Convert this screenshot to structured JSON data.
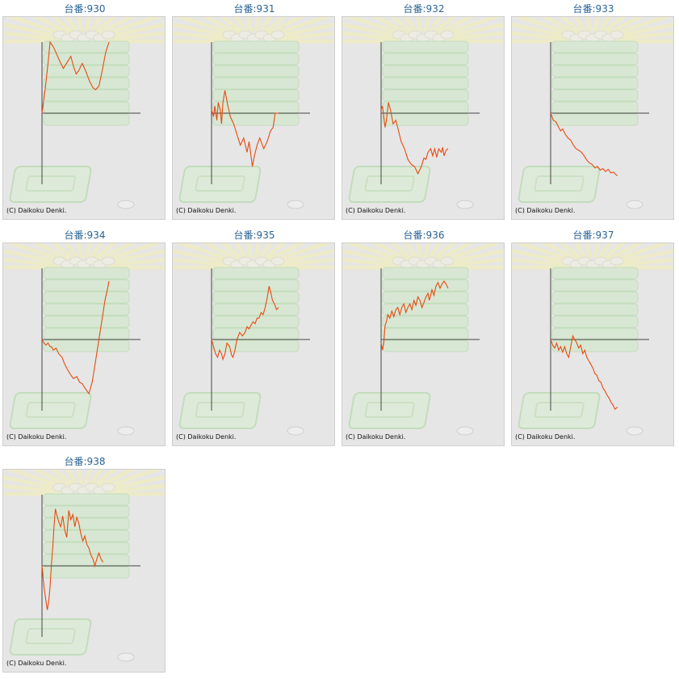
{
  "colors": {
    "line": "#e84a10",
    "axis": "#444444",
    "title": "#2a6496",
    "panel": "#e6e6e6"
  },
  "copyright": "(C) Daikoku Denki.",
  "chart_data": [
    {
      "type": "line",
      "title": "台番:930",
      "ylim": [
        -1,
        1
      ],
      "xlim": [
        0,
        1
      ],
      "x": [
        0,
        0.05,
        0.09,
        0.12,
        0.17,
        0.21,
        0.27,
        0.32,
        0.38,
        0.43,
        0.47,
        0.51,
        0.55,
        0.6,
        0.65,
        0.71,
        0.76,
        0.8,
        0.85,
        0.9,
        0.95,
        1
      ],
      "y": [
        0,
        0.35,
        0.7,
        1.0,
        0.93,
        0.85,
        0.72,
        0.63,
        0.72,
        0.8,
        0.66,
        0.55,
        0.6,
        0.7,
        0.6,
        0.45,
        0.36,
        0.33,
        0.38,
        0.6,
        0.85,
        1.0
      ]
    },
    {
      "type": "line",
      "title": "台番:931",
      "ylim": [
        -1,
        1
      ],
      "xlim": [
        0,
        1
      ],
      "x": [
        0,
        0.03,
        0.05,
        0.08,
        0.1,
        0.13,
        0.15,
        0.17,
        0.2,
        0.24,
        0.28,
        0.33,
        0.38,
        0.43,
        0.48,
        0.53,
        0.56,
        0.59,
        0.61,
        0.64,
        0.68,
        0.72,
        0.78,
        0.83,
        0.88,
        0.92,
        0.95,
        1
      ],
      "y": [
        0.05,
        -0.05,
        0.1,
        -0.1,
        0.15,
        0.05,
        -0.15,
        0.15,
        0.32,
        0.12,
        -0.05,
        -0.15,
        -0.3,
        -0.45,
        -0.35,
        -0.55,
        -0.4,
        -0.6,
        -0.75,
        -0.6,
        -0.45,
        -0.35,
        -0.5,
        -0.4,
        -0.25,
        -0.2,
        0.0,
        0.0
      ]
    },
    {
      "type": "line",
      "title": "台番:932",
      "ylim": [
        -1,
        1
      ],
      "xlim": [
        0,
        1
      ],
      "x": [
        0,
        0.02,
        0.04,
        0.06,
        0.08,
        0.11,
        0.14,
        0.18,
        0.22,
        0.26,
        0.3,
        0.35,
        0.4,
        0.45,
        0.5,
        0.55,
        0.6,
        0.64,
        0.67,
        0.7,
        0.74,
        0.77,
        0.8,
        0.83,
        0.86,
        0.9,
        0.92,
        0.94,
        0.97,
        1
      ],
      "y": [
        0.05,
        0.1,
        -0.05,
        -0.2,
        -0.1,
        0.15,
        0.05,
        -0.15,
        -0.1,
        -0.25,
        -0.4,
        -0.5,
        -0.65,
        -0.72,
        -0.75,
        -0.85,
        -0.75,
        -0.63,
        -0.65,
        -0.55,
        -0.5,
        -0.6,
        -0.5,
        -0.62,
        -0.5,
        -0.55,
        -0.48,
        -0.6,
        -0.52,
        -0.5
      ]
    },
    {
      "type": "line",
      "title": "台番:933",
      "ylim": [
        -1,
        1
      ],
      "xlim": [
        0,
        1
      ],
      "x": [
        0,
        0.04,
        0.08,
        0.12,
        0.15,
        0.18,
        0.22,
        0.26,
        0.3,
        0.34,
        0.38,
        0.42,
        0.46,
        0.5,
        0.54,
        0.58,
        0.62,
        0.66,
        0.7,
        0.74,
        0.78,
        0.82,
        0.86,
        0.9,
        0.94,
        0.97,
        1
      ],
      "y": [
        0.0,
        -0.1,
        -0.12,
        -0.2,
        -0.25,
        -0.22,
        -0.3,
        -0.35,
        -0.38,
        -0.45,
        -0.5,
        -0.52,
        -0.55,
        -0.6,
        -0.66,
        -0.7,
        -0.72,
        -0.77,
        -0.75,
        -0.8,
        -0.78,
        -0.82,
        -0.79,
        -0.84,
        -0.83,
        -0.86,
        -0.88
      ]
    },
    {
      "type": "line",
      "title": "台番:934",
      "ylim": [
        -1,
        1
      ],
      "xlim": [
        0,
        1
      ],
      "x": [
        0,
        0.03,
        0.06,
        0.09,
        0.12,
        0.14,
        0.17,
        0.21,
        0.25,
        0.3,
        0.34,
        0.38,
        0.43,
        0.47,
        0.52,
        0.56,
        0.6,
        0.64,
        0.67,
        0.7,
        0.75,
        0.8,
        0.85,
        0.9,
        0.94,
        0.98,
        1
      ],
      "y": [
        0.0,
        -0.05,
        -0.08,
        -0.05,
        -0.1,
        -0.1,
        -0.15,
        -0.12,
        -0.2,
        -0.25,
        -0.35,
        -0.42,
        -0.5,
        -0.55,
        -0.52,
        -0.6,
        -0.62,
        -0.68,
        -0.72,
        -0.76,
        -0.6,
        -0.3,
        0.0,
        0.3,
        0.55,
        0.72,
        0.82
      ]
    },
    {
      "type": "line",
      "title": "台番:935",
      "ylim": [
        -1,
        1
      ],
      "xlim": [
        0,
        1
      ],
      "x": [
        0,
        0.03,
        0.06,
        0.09,
        0.12,
        0.15,
        0.17,
        0.2,
        0.23,
        0.27,
        0.3,
        0.32,
        0.35,
        0.38,
        0.42,
        0.46,
        0.5,
        0.53,
        0.56,
        0.59,
        0.62,
        0.65,
        0.68,
        0.71,
        0.74,
        0.77,
        0.8,
        0.83,
        0.86,
        0.88,
        0.91,
        0.94,
        0.97,
        1
      ],
      "y": [
        0.0,
        -0.1,
        -0.2,
        -0.25,
        -0.15,
        -0.2,
        -0.28,
        -0.2,
        -0.05,
        -0.1,
        -0.22,
        -0.25,
        -0.15,
        0.0,
        0.1,
        0.05,
        0.1,
        0.18,
        0.15,
        0.2,
        0.25,
        0.22,
        0.3,
        0.3,
        0.38,
        0.35,
        0.45,
        0.58,
        0.75,
        0.68,
        0.55,
        0.5,
        0.42,
        0.45
      ]
    },
    {
      "type": "line",
      "title": "台番:936",
      "ylim": [
        -1,
        1
      ],
      "xlim": [
        0,
        1
      ],
      "x": [
        0,
        0.02,
        0.04,
        0.06,
        0.08,
        0.1,
        0.13,
        0.16,
        0.19,
        0.22,
        0.25,
        0.28,
        0.31,
        0.34,
        0.37,
        0.4,
        0.43,
        0.46,
        0.49,
        0.52,
        0.55,
        0.58,
        0.61,
        0.64,
        0.67,
        0.7,
        0.72,
        0.74,
        0.76,
        0.79,
        0.82,
        0.85,
        0.88,
        0.91,
        0.94,
        0.97,
        1
      ],
      "y": [
        -0.05,
        -0.15,
        -0.05,
        0.2,
        0.25,
        0.35,
        0.3,
        0.4,
        0.32,
        0.42,
        0.45,
        0.35,
        0.45,
        0.5,
        0.38,
        0.45,
        0.5,
        0.42,
        0.55,
        0.48,
        0.6,
        0.55,
        0.45,
        0.52,
        0.6,
        0.65,
        0.55,
        0.62,
        0.7,
        0.62,
        0.75,
        0.8,
        0.72,
        0.78,
        0.82,
        0.78,
        0.72
      ]
    },
    {
      "type": "line",
      "title": "台番:937",
      "ylim": [
        -1,
        1
      ],
      "xlim": [
        0,
        1
      ],
      "x": [
        0,
        0.03,
        0.06,
        0.09,
        0.12,
        0.15,
        0.18,
        0.21,
        0.24,
        0.27,
        0.3,
        0.33,
        0.36,
        0.39,
        0.42,
        0.45,
        0.48,
        0.51,
        0.54,
        0.57,
        0.6,
        0.63,
        0.66,
        0.69,
        0.72,
        0.75,
        0.78,
        0.81,
        0.84,
        0.87,
        0.9,
        0.93,
        0.96,
        1
      ],
      "y": [
        0.0,
        -0.08,
        -0.12,
        -0.05,
        -0.15,
        -0.1,
        -0.18,
        -0.1,
        -0.2,
        -0.25,
        -0.1,
        0.05,
        0.0,
        -0.05,
        -0.12,
        -0.08,
        -0.2,
        -0.15,
        -0.25,
        -0.3,
        -0.35,
        -0.4,
        -0.48,
        -0.5,
        -0.58,
        -0.6,
        -0.68,
        -0.72,
        -0.78,
        -0.82,
        -0.88,
        -0.92,
        -0.98,
        -0.95
      ]
    },
    {
      "type": "line",
      "title": "台番:938",
      "ylim": [
        -1,
        1
      ],
      "xlim": [
        0,
        1
      ],
      "x": [
        0,
        0.03,
        0.06,
        0.08,
        0.1,
        0.12,
        0.14,
        0.16,
        0.18,
        0.2,
        0.22,
        0.25,
        0.28,
        0.31,
        0.34,
        0.37,
        0.4,
        0.43,
        0.46,
        0.49,
        0.52,
        0.55,
        0.58,
        0.61,
        0.64,
        0.67,
        0.7,
        0.73,
        0.76,
        0.79,
        0.82,
        0.85,
        0.88,
        0.91
      ],
      "y": [
        0.0,
        -0.3,
        -0.5,
        -0.62,
        -0.5,
        -0.3,
        0.0,
        0.25,
        0.55,
        0.8,
        0.72,
        0.62,
        0.55,
        0.7,
        0.5,
        0.4,
        0.78,
        0.65,
        0.72,
        0.55,
        0.68,
        0.6,
        0.45,
        0.35,
        0.42,
        0.3,
        0.25,
        0.15,
        0.1,
        0.0,
        0.1,
        0.18,
        0.1,
        0.05
      ]
    }
  ]
}
